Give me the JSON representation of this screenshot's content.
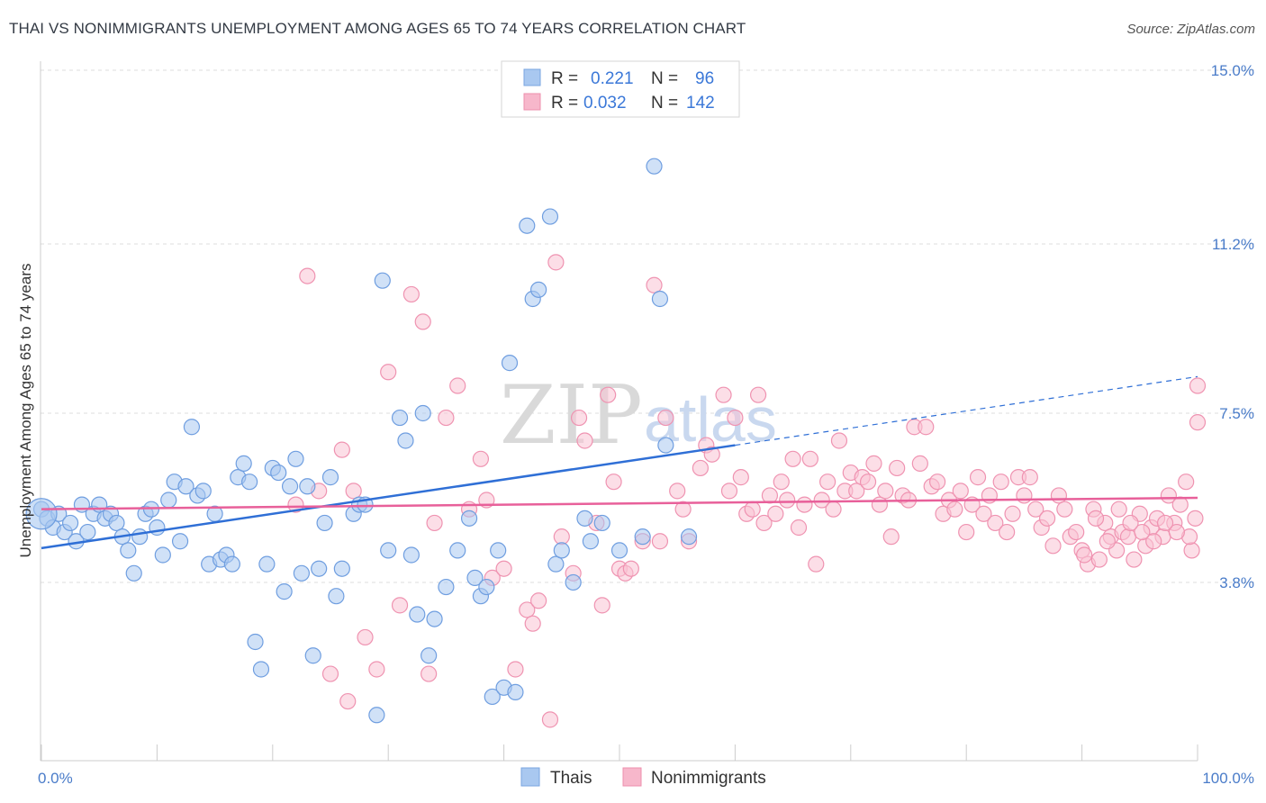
{
  "title": "THAI VS NONIMMIGRANTS UNEMPLOYMENT AMONG AGES 65 TO 74 YEARS CORRELATION CHART",
  "source": "Source: ZipAtlas.com",
  "watermark": {
    "zip": "ZIP",
    "atlas": "atlas"
  },
  "legend": {
    "r_label": "R =",
    "n_label": "N =",
    "entries": [
      {
        "name": "Thais",
        "r": "0.221",
        "n": "96",
        "color": "#a9c8f0",
        "stroke": "#7aa6e0"
      },
      {
        "name": "Nonimmigrants",
        "r": "0.032",
        "n": "142",
        "color": "#f7b7cb",
        "stroke": "#ee8fae"
      }
    ]
  },
  "chart_data": {
    "type": "scatter",
    "title": "THAI VS NONIMMIGRANTS UNEMPLOYMENT AMONG AGES 65 TO 74 YEARS CORRELATION CHART",
    "xlabel": "",
    "ylabel": "Unemployment Among Ages 65 to 74 years",
    "xlim": [
      0,
      100
    ],
    "ylim": [
      0,
      15.5
    ],
    "x_tick_labels": [
      "0.0%",
      "100.0%"
    ],
    "y_ticks": [
      3.8,
      7.5,
      11.2,
      15.0
    ],
    "y_tick_labels": [
      "3.8%",
      "7.5%",
      "11.2%",
      "15.0%"
    ],
    "grid": "horizontal dashed",
    "legend_position": "top-center",
    "series": [
      {
        "name": "Thais",
        "color": "#6fa0e0",
        "trend": {
          "x0": 0,
          "y0": 4.55,
          "x1": 60,
          "y1": 6.8,
          "dashed_to_x": 100,
          "dashed_to_y": 8.3,
          "color": "#2f6fd6"
        },
        "points": [
          [
            0,
            5.4
          ],
          [
            0.5,
            5.2
          ],
          [
            1,
            5.0
          ],
          [
            1.5,
            5.3
          ],
          [
            2,
            4.9
          ],
          [
            2.5,
            5.1
          ],
          [
            3,
            4.7
          ],
          [
            3.5,
            5.5
          ],
          [
            4,
            4.9
          ],
          [
            4.5,
            5.3
          ],
          [
            5,
            5.5
          ],
          [
            5.5,
            5.2
          ],
          [
            6,
            5.3
          ],
          [
            6.5,
            5.1
          ],
          [
            7,
            4.8
          ],
          [
            7.5,
            4.5
          ],
          [
            8,
            4.0
          ],
          [
            8.5,
            4.8
          ],
          [
            9,
            5.3
          ],
          [
            9.5,
            5.4
          ],
          [
            10,
            5.0
          ],
          [
            10.5,
            4.4
          ],
          [
            11,
            5.6
          ],
          [
            11.5,
            6.0
          ],
          [
            12,
            4.7
          ],
          [
            12.5,
            5.9
          ],
          [
            13,
            7.2
          ],
          [
            13.5,
            5.7
          ],
          [
            14,
            5.8
          ],
          [
            14.5,
            4.2
          ],
          [
            15,
            5.3
          ],
          [
            15.5,
            4.3
          ],
          [
            16,
            4.4
          ],
          [
            16.5,
            4.2
          ],
          [
            17,
            6.1
          ],
          [
            17.5,
            6.4
          ],
          [
            18,
            6.0
          ],
          [
            18.5,
            2.5
          ],
          [
            19,
            1.9
          ],
          [
            19.5,
            4.2
          ],
          [
            20,
            6.3
          ],
          [
            20.5,
            6.2
          ],
          [
            21,
            3.6
          ],
          [
            21.5,
            5.9
          ],
          [
            22,
            6.5
          ],
          [
            22.5,
            4.0
          ],
          [
            23,
            5.9
          ],
          [
            23.5,
            2.2
          ],
          [
            24,
            4.1
          ],
          [
            24.5,
            5.1
          ],
          [
            25,
            6.1
          ],
          [
            25.5,
            3.5
          ],
          [
            26,
            4.1
          ],
          [
            27,
            5.3
          ],
          [
            27.5,
            5.5
          ],
          [
            28,
            5.5
          ],
          [
            29,
            0.9
          ],
          [
            29.5,
            10.4
          ],
          [
            30,
            4.5
          ],
          [
            31,
            7.4
          ],
          [
            31.5,
            6.9
          ],
          [
            32,
            4.4
          ],
          [
            32.5,
            3.1
          ],
          [
            33,
            7.5
          ],
          [
            33.5,
            2.2
          ],
          [
            34,
            3.0
          ],
          [
            35,
            3.7
          ],
          [
            36,
            4.5
          ],
          [
            37,
            5.2
          ],
          [
            37.5,
            3.9
          ],
          [
            38,
            3.5
          ],
          [
            38.5,
            3.7
          ],
          [
            39,
            1.3
          ],
          [
            39.5,
            4.5
          ],
          [
            40,
            1.5
          ],
          [
            40.5,
            8.6
          ],
          [
            41,
            1.4
          ],
          [
            42,
            11.6
          ],
          [
            42.5,
            10.0
          ],
          [
            43,
            10.2
          ],
          [
            44,
            11.8
          ],
          [
            44.5,
            4.2
          ],
          [
            45,
            4.5
          ],
          [
            46,
            3.8
          ],
          [
            47,
            5.2
          ],
          [
            47.5,
            4.7
          ],
          [
            48.5,
            5.1
          ],
          [
            50,
            4.5
          ],
          [
            52,
            4.8
          ],
          [
            53,
            12.9
          ],
          [
            53.5,
            10.0
          ],
          [
            54,
            6.8
          ],
          [
            56,
            4.8
          ]
        ]
      },
      {
        "name": "Nonimmigrants",
        "color": "#f4a8c0",
        "trend": {
          "x0": 0,
          "y0": 5.4,
          "x1": 100,
          "y1": 5.65,
          "color": "#e8609a"
        },
        "points": [
          [
            22,
            5.5
          ],
          [
            23,
            10.5
          ],
          [
            24,
            5.8
          ],
          [
            25,
            1.8
          ],
          [
            26,
            6.7
          ],
          [
            26.5,
            1.2
          ],
          [
            27,
            5.8
          ],
          [
            28,
            2.6
          ],
          [
            29,
            1.9
          ],
          [
            30,
            8.4
          ],
          [
            31,
            3.3
          ],
          [
            32,
            10.1
          ],
          [
            33,
            9.5
          ],
          [
            33.5,
            1.8
          ],
          [
            34,
            5.1
          ],
          [
            35,
            7.4
          ],
          [
            36,
            8.1
          ],
          [
            37,
            5.4
          ],
          [
            38,
            6.5
          ],
          [
            38.5,
            5.6
          ],
          [
            39,
            3.9
          ],
          [
            40,
            4.1
          ],
          [
            41,
            1.9
          ],
          [
            42,
            3.2
          ],
          [
            42.5,
            2.9
          ],
          [
            43,
            3.4
          ],
          [
            44,
            0.8
          ],
          [
            44.5,
            10.8
          ],
          [
            45,
            4.8
          ],
          [
            46,
            4.0
          ],
          [
            46.5,
            7.4
          ],
          [
            47,
            6.9
          ],
          [
            48,
            5.1
          ],
          [
            48.5,
            3.3
          ],
          [
            49,
            7.9
          ],
          [
            49.5,
            6.0
          ],
          [
            50,
            4.1
          ],
          [
            50.5,
            4.0
          ],
          [
            51,
            4.1
          ],
          [
            52,
            4.7
          ],
          [
            53,
            10.3
          ],
          [
            53.5,
            4.7
          ],
          [
            54,
            7.4
          ],
          [
            55,
            5.8
          ],
          [
            55.5,
            5.4
          ],
          [
            56,
            4.7
          ],
          [
            57,
            6.3
          ],
          [
            57.5,
            6.8
          ],
          [
            58,
            6.6
          ],
          [
            59,
            7.9
          ],
          [
            59.5,
            5.8
          ],
          [
            60,
            7.4
          ],
          [
            60.5,
            6.1
          ],
          [
            61,
            5.3
          ],
          [
            61.5,
            5.4
          ],
          [
            62,
            7.9
          ],
          [
            62.5,
            5.1
          ],
          [
            63,
            5.7
          ],
          [
            63.5,
            5.3
          ],
          [
            64,
            6.0
          ],
          [
            64.5,
            5.6
          ],
          [
            65,
            6.5
          ],
          [
            65.5,
            5.0
          ],
          [
            66,
            5.5
          ],
          [
            66.5,
            6.5
          ],
          [
            67,
            4.2
          ],
          [
            67.5,
            5.6
          ],
          [
            68,
            6.0
          ],
          [
            68.5,
            5.4
          ],
          [
            69,
            6.9
          ],
          [
            69.5,
            5.8
          ],
          [
            70,
            6.2
          ],
          [
            70.5,
            5.8
          ],
          [
            71,
            6.1
          ],
          [
            71.5,
            6.0
          ],
          [
            72,
            6.4
          ],
          [
            72.5,
            5.5
          ],
          [
            73,
            5.8
          ],
          [
            73.5,
            4.8
          ],
          [
            74,
            6.3
          ],
          [
            74.5,
            5.7
          ],
          [
            75,
            5.6
          ],
          [
            75.5,
            7.2
          ],
          [
            76,
            6.4
          ],
          [
            76.5,
            7.2
          ],
          [
            77,
            5.9
          ],
          [
            77.5,
            6.0
          ],
          [
            78,
            5.3
          ],
          [
            78.5,
            5.6
          ],
          [
            79,
            5.4
          ],
          [
            79.5,
            5.8
          ],
          [
            80,
            4.9
          ],
          [
            80.5,
            5.5
          ],
          [
            81,
            6.1
          ],
          [
            81.5,
            5.3
          ],
          [
            82,
            5.7
          ],
          [
            82.5,
            5.1
          ],
          [
            83,
            6.0
          ],
          [
            83.5,
            4.9
          ],
          [
            84,
            5.3
          ],
          [
            84.5,
            6.1
          ],
          [
            85,
            5.7
          ],
          [
            85.5,
            6.1
          ],
          [
            86,
            5.4
          ],
          [
            86.5,
            5.0
          ],
          [
            87,
            5.2
          ],
          [
            87.5,
            4.6
          ],
          [
            88,
            5.7
          ],
          [
            88.5,
            5.4
          ],
          [
            89,
            4.8
          ],
          [
            89.5,
            4.9
          ],
          [
            90,
            4.5
          ],
          [
            90.5,
            4.2
          ],
          [
            91,
            5.4
          ],
          [
            91.5,
            4.3
          ],
          [
            92,
            5.1
          ],
          [
            92.5,
            4.8
          ],
          [
            93,
            4.5
          ],
          [
            93.5,
            4.9
          ],
          [
            94,
            4.8
          ],
          [
            94.5,
            4.3
          ],
          [
            95,
            5.3
          ],
          [
            95.5,
            4.6
          ],
          [
            96,
            5.0
          ],
          [
            96.5,
            5.2
          ],
          [
            97,
            4.8
          ],
          [
            97.5,
            5.7
          ],
          [
            98,
            5.1
          ],
          [
            98.5,
            5.5
          ],
          [
            99,
            6.0
          ],
          [
            99.5,
            4.5
          ],
          [
            100,
            8.1
          ],
          [
            100,
            7.3
          ],
          [
            99.8,
            5.2
          ],
          [
            99.3,
            4.8
          ],
          [
            98.2,
            4.9
          ],
          [
            97.2,
            5.1
          ],
          [
            96.2,
            4.7
          ],
          [
            95.2,
            4.9
          ],
          [
            94.2,
            5.1
          ],
          [
            93.2,
            5.4
          ],
          [
            92.2,
            4.7
          ],
          [
            91.2,
            5.2
          ],
          [
            90.2,
            4.4
          ]
        ]
      }
    ]
  },
  "bottom_legend": {
    "labels": [
      "Thais",
      "Nonimmigrants"
    ]
  }
}
